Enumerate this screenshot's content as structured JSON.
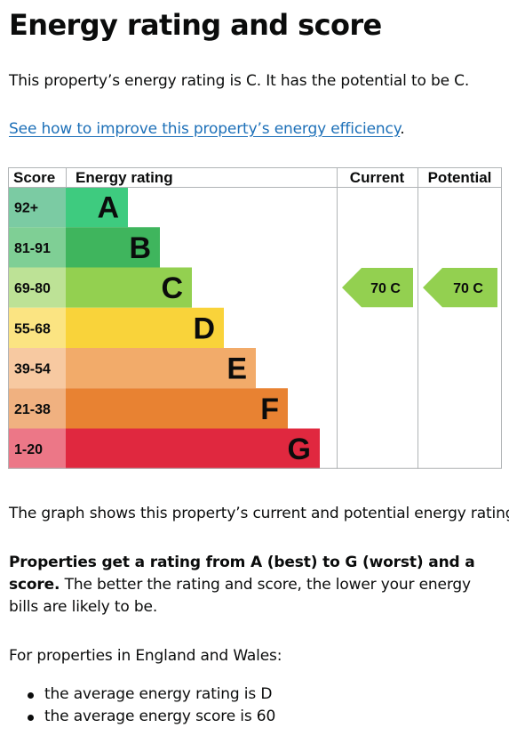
{
  "page": {
    "title": "Energy rating and score",
    "summary": "This property’s energy rating is C. It has the potential to be C.",
    "improve_link": "See how to improve this property’s energy efficiency",
    "improve_link_suffix": ".",
    "graph_description": "The graph shows this property’s current and potential energy rating.",
    "rating_info_bold": "Properties get a rating from A (best) to G (worst) and a score.",
    "rating_info_rest": " The better the rating and score, the lower your energy bills are likely to be.",
    "regions_intro": "For properties in England and Wales:",
    "averages": [
      "the average energy rating is D",
      "the average energy score is 60"
    ]
  },
  "chart_data": {
    "type": "bar",
    "headers": {
      "score": "Score",
      "rating": "Energy rating",
      "current": "Current",
      "potential": "Potential"
    },
    "bands": [
      {
        "score": "92+",
        "letter": "A",
        "min": 92,
        "color": "#3ecb7f",
        "score_color": "#7bcba3"
      },
      {
        "score": "81-91",
        "letter": "B",
        "min": 81,
        "color": "#3fb55d",
        "score_color": "#7fcf95"
      },
      {
        "score": "69-80",
        "letter": "C",
        "min": 69,
        "color": "#93d050",
        "score_color": "#bde296"
      },
      {
        "score": "55-68",
        "letter": "D",
        "min": 55,
        "color": "#f9d33a",
        "score_color": "#fbe482"
      },
      {
        "score": "39-54",
        "letter": "E",
        "min": 39,
        "color": "#f2ab6a",
        "score_color": "#f7c9a1"
      },
      {
        "score": "21-38",
        "letter": "F",
        "min": 21,
        "color": "#e88232",
        "score_color": "#f0b180"
      },
      {
        "score": "1-20",
        "letter": "G",
        "min": 1,
        "color": "#e0283f",
        "score_color": "#ec7787"
      }
    ],
    "current": {
      "score": 70,
      "letter": "C",
      "label": "70  C",
      "color": "#93d050"
    },
    "potential": {
      "score": 70,
      "letter": "C",
      "label": "70  C",
      "color": "#93d050"
    }
  }
}
